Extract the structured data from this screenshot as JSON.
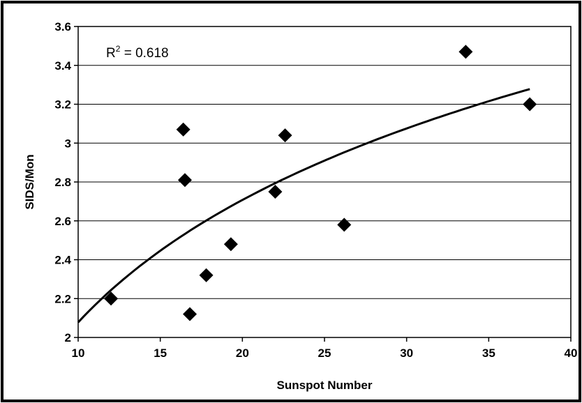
{
  "chart_data": {
    "type": "scatter",
    "title": "",
    "xlabel": "Sunspot Number",
    "ylabel": "SIDS/Mon",
    "xlim": [
      10,
      40
    ],
    "ylim": [
      2,
      3.6
    ],
    "xticks": [
      "10",
      "15",
      "20",
      "25",
      "30",
      "35",
      "40"
    ],
    "yticks": [
      "2",
      "2.2",
      "2.4",
      "2.6",
      "2.8",
      "3",
      "3.2",
      "3.4",
      "3.6"
    ],
    "grid": "horizontal",
    "legend": "none",
    "points": [
      {
        "x": 12.0,
        "y": 2.2
      },
      {
        "x": 16.4,
        "y": 3.07
      },
      {
        "x": 16.5,
        "y": 2.81
      },
      {
        "x": 16.8,
        "y": 2.12
      },
      {
        "x": 17.8,
        "y": 2.32
      },
      {
        "x": 19.3,
        "y": 2.48
      },
      {
        "x": 22.0,
        "y": 2.75
      },
      {
        "x": 22.6,
        "y": 3.04
      },
      {
        "x": 26.2,
        "y": 2.58
      },
      {
        "x": 33.6,
        "y": 3.47
      },
      {
        "x": 37.5,
        "y": 3.2
      }
    ],
    "trendline": {
      "type": "logarithmic",
      "x_range": [
        10,
        37.5
      ],
      "samples": [
        {
          "x": 10,
          "y": 2.12
        },
        {
          "x": 15,
          "y": 2.42
        },
        {
          "x": 20,
          "y": 2.66
        },
        {
          "x": 25,
          "y": 2.9
        },
        {
          "x": 30,
          "y": 3.08
        },
        {
          "x": 35,
          "y": 3.23
        },
        {
          "x": 37.5,
          "y": 3.3
        }
      ]
    },
    "annotation": {
      "base": "R",
      "sup": "2",
      "rest": " = 0.618"
    },
    "marker_color": "#000000",
    "line_color": "#000000"
  }
}
